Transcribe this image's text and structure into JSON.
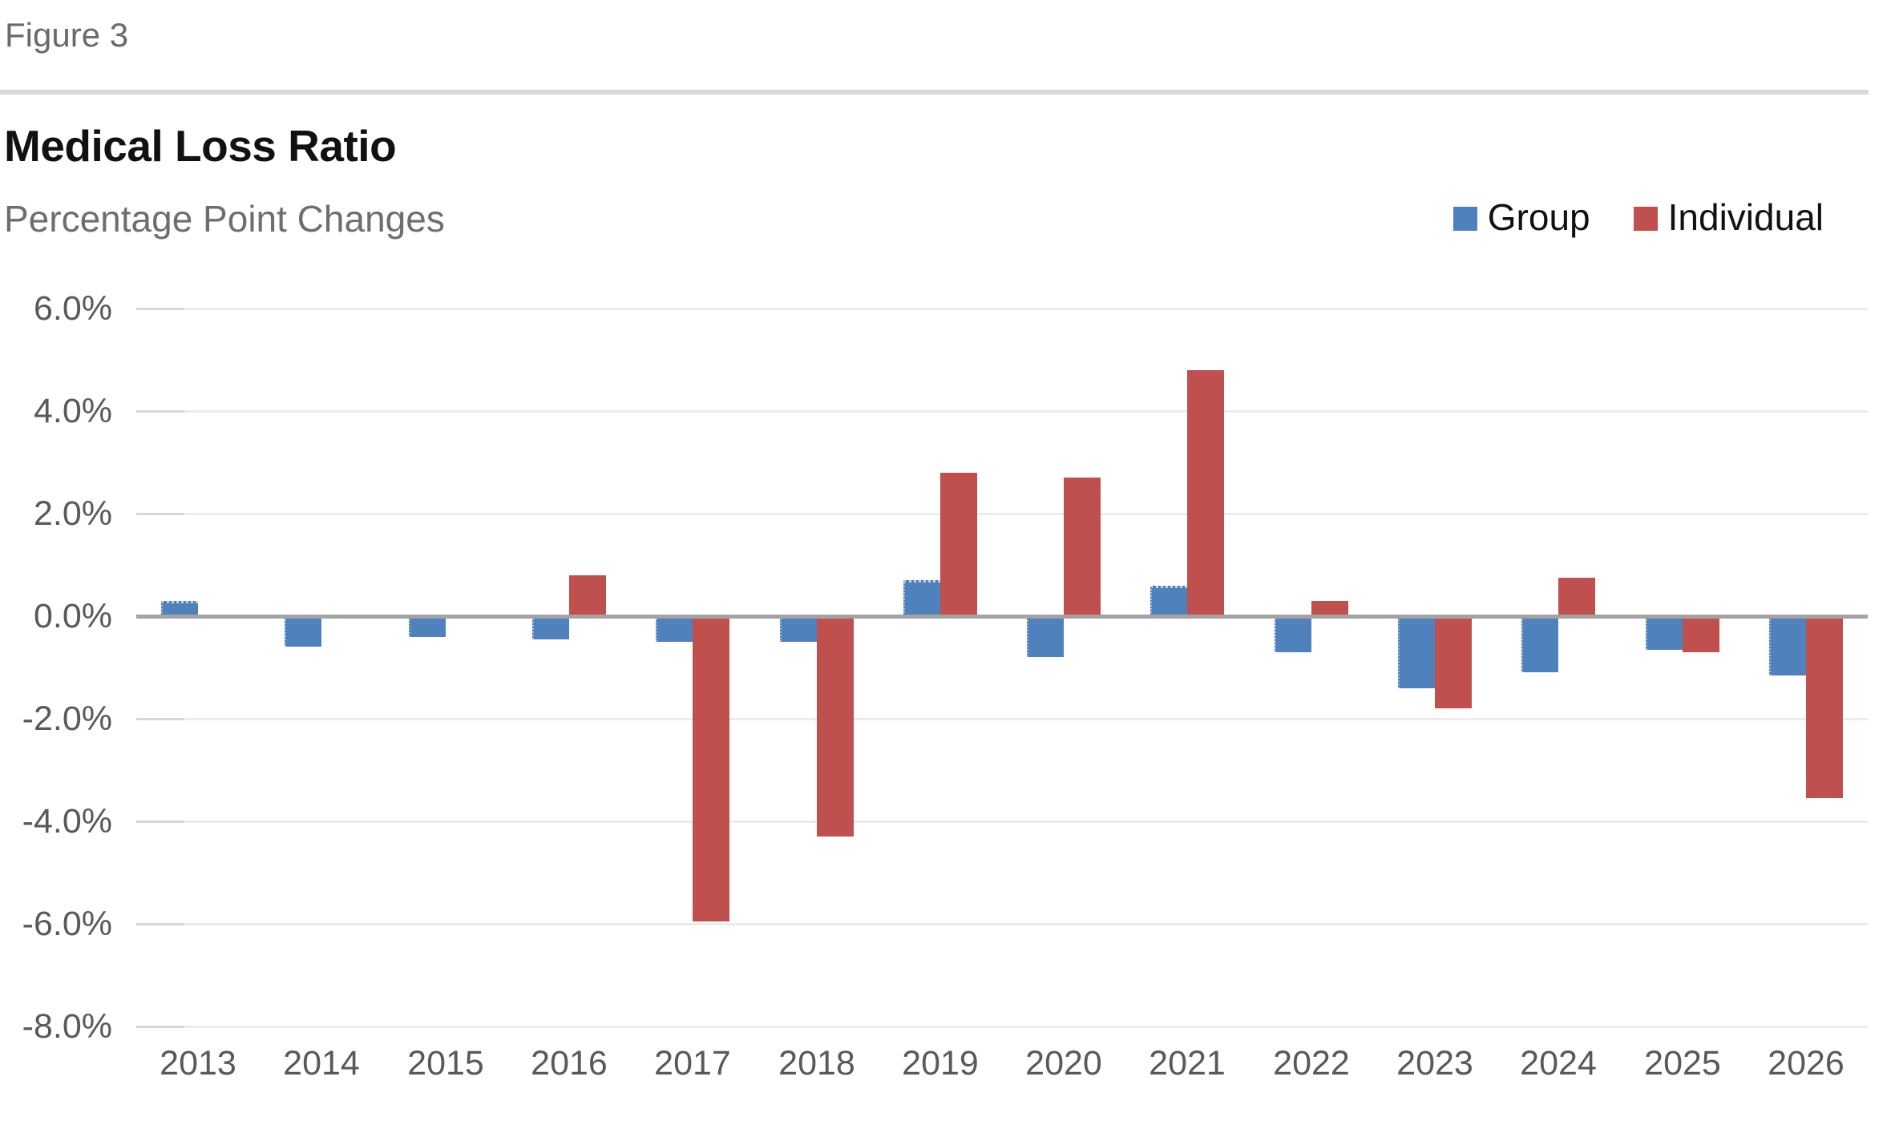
{
  "figure_label": "Figure 3",
  "chart_data": {
    "type": "bar",
    "title": "Medical Loss Ratio",
    "subtitle": "Percentage Point Changes",
    "categories": [
      "2013",
      "2014",
      "2015",
      "2016",
      "2017",
      "2018",
      "2019",
      "2020",
      "2021",
      "2022",
      "2023",
      "2024",
      "2025",
      "2026"
    ],
    "series": [
      {
        "name": "Group",
        "color": "#4F81BC",
        "values": [
          0.3,
          -0.6,
          -0.4,
          -0.45,
          -0.5,
          -0.5,
          0.7,
          -0.8,
          0.6,
          -0.7,
          -1.4,
          -1.1,
          -0.65,
          -1.15
        ]
      },
      {
        "name": "Individual",
        "color": "#C0504D",
        "values": [
          null,
          null,
          null,
          0.8,
          -5.95,
          -4.3,
          2.8,
          2.7,
          4.8,
          0.3,
          -1.8,
          0.75,
          -0.7,
          -3.55
        ]
      }
    ],
    "unit": "percentage points",
    "ylim": [
      -8,
      6
    ],
    "y_ticks": {
      "values": [
        6,
        4,
        2,
        0,
        -2,
        -4,
        -6,
        -8
      ],
      "labels": [
        "6.0%",
        "4.0%",
        "2.0%",
        "0.0%",
        "-2.0%",
        "-4.0%",
        "-6.0%",
        "-8.0%"
      ]
    },
    "grid": "horizontal",
    "legend_position": "top-right",
    "colors": {
      "zero_line": "#A3A3A3",
      "gridline": "#ECECEC",
      "grid_stub": "#D8D8D8",
      "axis_text": "#595959",
      "title_text": "#111111",
      "subtitle_text": "#6E6E6E",
      "figure_label_text": "#6A6A6A",
      "divider": "#D9D9D9",
      "background": "#FFFFFF"
    }
  }
}
